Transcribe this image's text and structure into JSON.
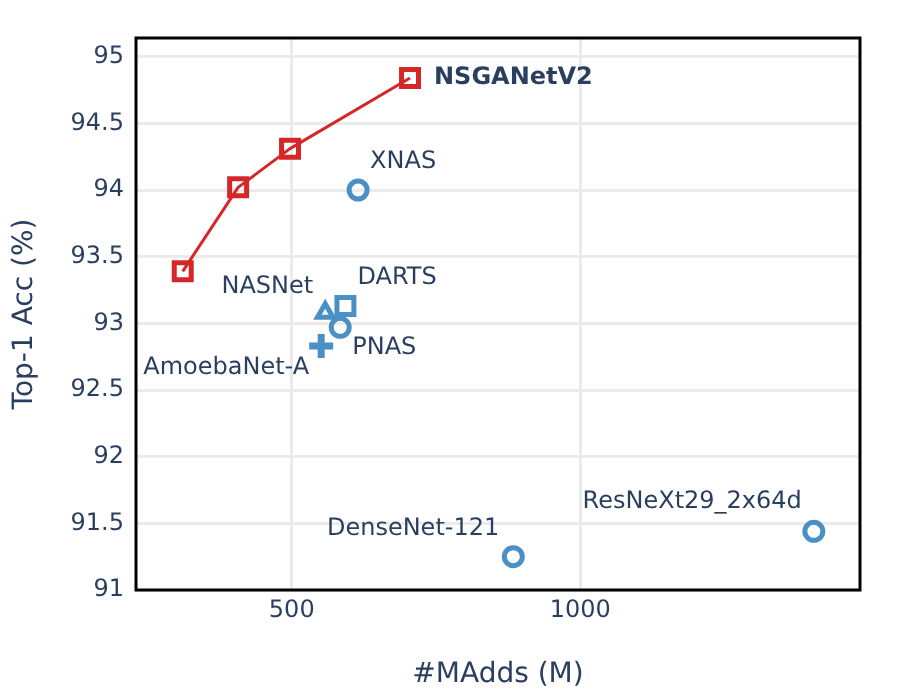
{
  "chart_data": {
    "type": "scatter",
    "xlabel": "#MAdds (M)",
    "ylabel": "Top-1 Acc (%)",
    "xlim": [
      230,
      1485
    ],
    "xticks": [
      500,
      1000
    ],
    "ylim": [
      91,
      95.14
    ],
    "yticks": [
      91,
      91.5,
      92,
      92.5,
      93,
      93.5,
      94,
      94.5,
      95
    ],
    "grid": true,
    "legend": false,
    "series": [
      {
        "name": "NSGANetV2",
        "type": "line",
        "marker": "square",
        "color": "#d62728",
        "x": [
          311,
          407,
          497,
          705
        ],
        "values": [
          93.39,
          94.02,
          94.31,
          94.84
        ]
      },
      {
        "name": "XNAS",
        "marker": "circle",
        "color": "#4a90c4",
        "x": [
          615
        ],
        "values": [
          94.0
        ]
      },
      {
        "name": "NASNet",
        "marker": "triangle",
        "color": "#4a90c4",
        "x": [
          558
        ],
        "values": [
          93.08
        ]
      },
      {
        "name": "DARTS",
        "marker": "square",
        "color": "#4a90c4",
        "x": [
          593
        ],
        "values": [
          93.13
        ]
      },
      {
        "name": "PNAS",
        "marker": "circle",
        "color": "#4a90c4",
        "x": [
          584
        ],
        "values": [
          92.97
        ]
      },
      {
        "name": "AmoebaNet-A",
        "marker": "cross",
        "color": "#4a90c4",
        "x": [
          551
        ],
        "values": [
          92.83
        ]
      },
      {
        "name": "DenseNet-121",
        "marker": "circle",
        "color": "#4a90c4",
        "x": [
          884
        ],
        "values": [
          91.25
        ]
      },
      {
        "name": "ResNeXt29_2x64d",
        "marker": "circle",
        "color": "#4a90c4",
        "x": [
          1405
        ],
        "values": [
          91.44
        ]
      }
    ]
  }
}
